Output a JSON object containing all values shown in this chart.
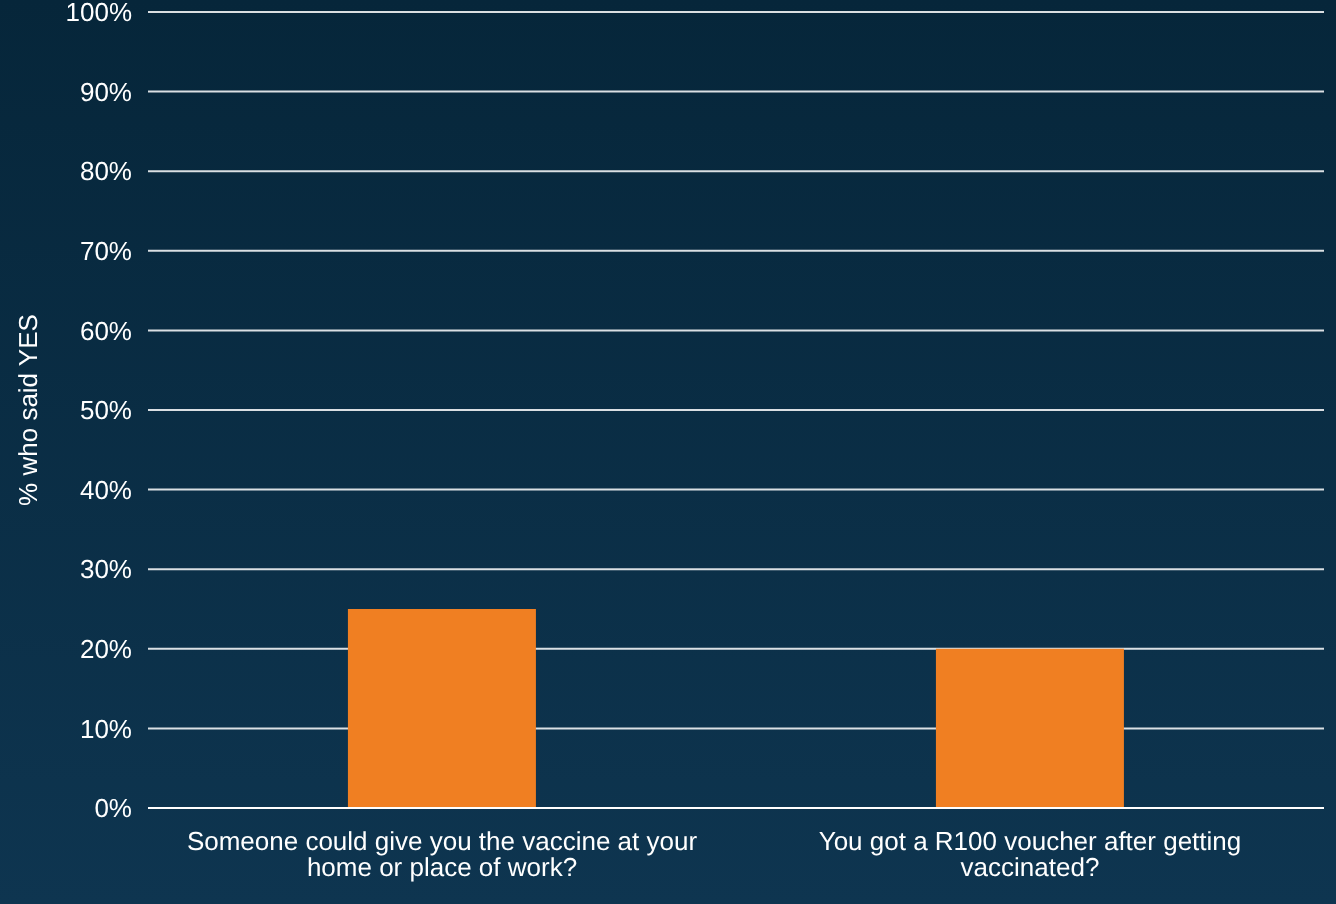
{
  "chart_data": {
    "type": "bar",
    "ylabel": "% who said YES",
    "categories": [
      "Someone could give you the vaccine at your home or place of work?",
      "You got a R100 voucher after getting vaccinated?"
    ],
    "values": [
      25,
      20
    ],
    "color": "#f07f22",
    "ylim": [
      0,
      100
    ],
    "yticks": [
      {
        "value": 0,
        "label": "0%"
      },
      {
        "value": 10,
        "label": "10%"
      },
      {
        "value": 20,
        "label": "20%"
      },
      {
        "value": 30,
        "label": "30%"
      },
      {
        "value": 40,
        "label": "40%"
      },
      {
        "value": 50,
        "label": "50%"
      },
      {
        "value": 60,
        "label": "60%"
      },
      {
        "value": 70,
        "label": "70%"
      },
      {
        "value": 80,
        "label": "80%"
      },
      {
        "value": 90,
        "label": "90%"
      },
      {
        "value": 100,
        "label": "100%"
      }
    ],
    "grid": "y"
  }
}
